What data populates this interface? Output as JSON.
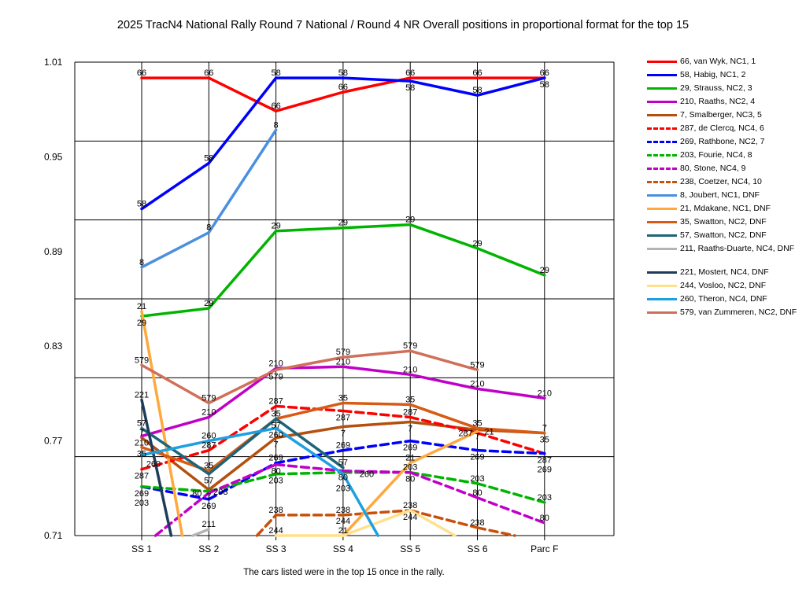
{
  "title": "2025 TracN4 National Rally Round 7 National / Round 4 NR  Overall positions in proportional format for the top 15",
  "footer": "The cars listed were in the top 15 once in the rally.",
  "chart_data": {
    "type": "line",
    "title": "2025 TracN4 National Rally Round 7 National / Round 4 NR  Overall positions in proportional format for the top 15",
    "categories": [
      "SS 1",
      "SS 2",
      "SS 3",
      "SS 4",
      "SS 5",
      "SS 6",
      "Parc F"
    ],
    "ylim": [
      0.71,
      1.01
    ],
    "yticks": [
      "1.01",
      "0.95",
      "0.89",
      "0.83",
      "0.77",
      "0.71"
    ],
    "grid": true,
    "legend_position": "right",
    "series": [
      {
        "name": "66, van Wyk, NC1, 1",
        "label": "66",
        "color": "#ff0000",
        "dash": false,
        "values": [
          1.0,
          1.0,
          0.979,
          0.991,
          1.0,
          1.0,
          1.0
        ]
      },
      {
        "name": "58, Habig, NC1, 2",
        "label": "58",
        "color": "#0000ff",
        "dash": false,
        "values": [
          0.917,
          0.946,
          1.0,
          1.0,
          0.998,
          0.989,
          1.0
        ]
      },
      {
        "name": "29, Strauss, NC2, 3",
        "label": "29",
        "color": "#00b400",
        "dash": false,
        "values": [
          0.849,
          0.854,
          0.903,
          0.905,
          0.907,
          0.892,
          0.875
        ]
      },
      {
        "name": "210, Raaths, NC2, 4",
        "label": "210",
        "color": "#c000c8",
        "dash": false,
        "values": [
          0.773,
          0.785,
          0.816,
          0.817,
          0.812,
          0.803,
          0.797
        ]
      },
      {
        "name": "7, Smalberger, NC3, 5",
        "label": "7",
        "color": "#b4500f",
        "dash": false,
        "values": [
          0.772,
          0.739,
          0.772,
          0.779,
          0.782,
          0.777,
          0.775
        ]
      },
      {
        "name": "287, de Clercq, NC4, 6",
        "label": "287",
        "color": "#ff0000",
        "dash": true,
        "values": [
          0.752,
          0.764,
          0.792,
          0.789,
          0.785,
          0.775,
          0.762
        ]
      },
      {
        "name": "269, Rathbone, NC2, 7",
        "label": "269",
        "color": "#0000ff",
        "dash": true,
        "values": [
          0.741,
          0.733,
          0.756,
          0.764,
          0.77,
          0.764,
          0.762
        ]
      },
      {
        "name": "203, Fourie, NC4, 8",
        "label": "203",
        "color": "#00b400",
        "dash": true,
        "values": [
          0.741,
          0.738,
          0.749,
          0.75,
          0.75,
          0.743,
          0.731
        ]
      },
      {
        "name": "80, Stone, NC4, 9",
        "label": "80",
        "color": "#c000c8",
        "dash": true,
        "values": [
          0.703,
          0.737,
          0.755,
          0.751,
          0.75,
          0.734,
          0.718
        ]
      },
      {
        "name": "238, Coetzer, NC4, 10",
        "label": "238",
        "color": "#c8500a",
        "dash": true,
        "values": [
          null,
          0.677,
          0.723,
          0.723,
          0.726,
          0.715,
          0.706
        ]
      },
      {
        "name": "8, Joubert, NC1,  DNF",
        "label": "8",
        "color": "#4a8fe0",
        "dash": false,
        "values": [
          0.88,
          0.902,
          0.967,
          null,
          null,
          null,
          null
        ]
      },
      {
        "name": "21, Mdakane, NC1,  DNF",
        "label": "21",
        "color": "#ffa83c",
        "dash": false,
        "values": [
          0.852,
          0.617,
          0.7,
          0.71,
          0.756,
          0.776,
          null
        ]
      },
      {
        "name": "35, Swatton, NC2,  DNF",
        "label": "35",
        "color": "#d85a14",
        "dash": false,
        "values": [
          0.766,
          0.751,
          0.784,
          0.794,
          0.793,
          0.778,
          0.775
        ]
      },
      {
        "name": "57, Swatton, NC2,  DNF",
        "label": "57",
        "color": "#1e6478",
        "dash": false,
        "values": [
          0.778,
          0.749,
          0.784,
          0.753,
          null,
          null,
          null
        ]
      },
      {
        "name": "211, Raaths-Duarte, NC4, DNF",
        "label": "211",
        "color": "#b4b4b4",
        "dash": false,
        "values": [
          0.697,
          0.714,
          null,
          null,
          null,
          null,
          null
        ]
      },
      {
        "name": "221, Mostert, NC4,  DNF",
        "label": "221",
        "color": "#1e3c5a",
        "dash": false,
        "values": [
          0.796,
          0.6,
          null,
          null,
          null,
          null,
          null
        ]
      },
      {
        "name": "244, Vosloo, NC2,  DNF",
        "label": "244",
        "color": "#ffe08c",
        "dash": false,
        "values": [
          null,
          null,
          0.71,
          0.71,
          0.726,
          0.702,
          null
        ]
      },
      {
        "name": "260, Theron, NC4,  DNF",
        "label": "260",
        "color": "#1ea0e0",
        "dash": false,
        "values": [
          0.761,
          0.77,
          0.778,
          0.749,
          0.674,
          null,
          null
        ]
      },
      {
        "name": "579, van Zummeren, NC2, DNF",
        "label": "579",
        "color": "#d0705a",
        "dash": false,
        "values": [
          0.818,
          0.794,
          0.815,
          0.823,
          0.827,
          0.815,
          null
        ]
      }
    ]
  }
}
